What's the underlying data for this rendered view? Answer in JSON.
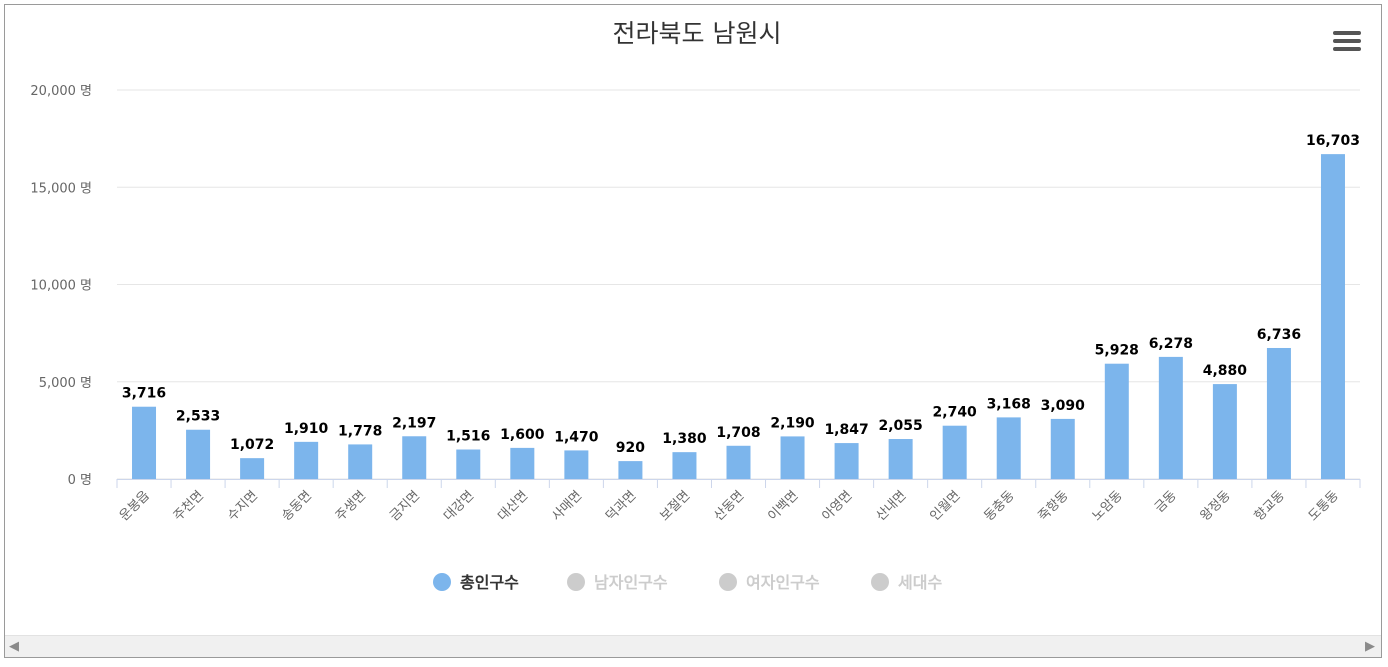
{
  "chart_data": {
    "type": "bar",
    "title": "전라북도 남원시",
    "categories": [
      "운봉읍",
      "주천면",
      "수지면",
      "송동면",
      "주생면",
      "금지면",
      "대강면",
      "대산면",
      "사매면",
      "덕과면",
      "보절면",
      "산동면",
      "이백면",
      "아영면",
      "산내면",
      "인월면",
      "동충동",
      "죽항동",
      "노암동",
      "금동",
      "왕정동",
      "향교동",
      "도통동"
    ],
    "series": [
      {
        "name": "총인구수",
        "values": [
          3716,
          2533,
          1072,
          1910,
          1778,
          2197,
          1516,
          1600,
          1470,
          920,
          1380,
          1708,
          2190,
          1847,
          2055,
          2740,
          3168,
          3090,
          5928,
          6278,
          4880,
          6736,
          16703
        ],
        "data_labels": [
          "3,716",
          "2,533",
          "1,072",
          "1,910",
          "1,778",
          "2,197",
          "1,516",
          "1,600",
          "1,470",
          "920",
          "1,380",
          "1,708",
          "2,190",
          "1,847",
          "2,055",
          "2,740",
          "3,168",
          "3,090",
          "5,928",
          "6,278",
          "4,880",
          "6,736",
          "16,703"
        ],
        "color": "#7cb5ec",
        "visible": true
      },
      {
        "name": "남자인구수",
        "color": "#cccccc",
        "visible": false
      },
      {
        "name": "여자인구수",
        "color": "#cccccc",
        "visible": false
      },
      {
        "name": "세대수",
        "color": "#cccccc",
        "visible": false
      }
    ],
    "ylim": [
      0,
      20000
    ],
    "y_ticks": [
      0,
      5000,
      10000,
      15000,
      20000
    ],
    "y_tick_labels": [
      "0 명",
      "5,000 명",
      "10,000 명",
      "15,000 명",
      "20,000 명"
    ],
    "grid": true,
    "legend_position": "bottom-center"
  },
  "colors": {
    "bar": "#7cb5ec",
    "legend_inactive": "#cccccc",
    "grid": "#e6e6e6",
    "axis_text": "#666666"
  },
  "icons": {
    "menu": "hamburger-menu-icon",
    "scroll_left": "◀",
    "scroll_right": "▶"
  }
}
